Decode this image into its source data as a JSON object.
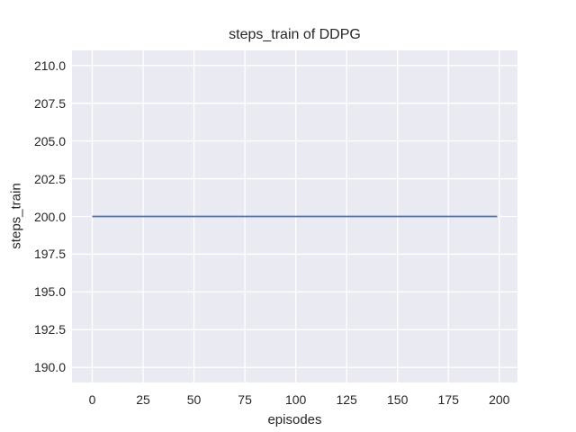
{
  "chart_data": {
    "type": "line",
    "title": "steps_train of DDPG",
    "xlabel": "episodes",
    "ylabel": "steps_train",
    "xlim": [
      -9.95,
      208.95
    ],
    "ylim": [
      189,
      211
    ],
    "x_ticks": [
      {
        "value": 0,
        "label": "0"
      },
      {
        "value": 25,
        "label": "25"
      },
      {
        "value": 50,
        "label": "50"
      },
      {
        "value": 75,
        "label": "75"
      },
      {
        "value": 100,
        "label": "100"
      },
      {
        "value": 125,
        "label": "125"
      },
      {
        "value": 150,
        "label": "150"
      },
      {
        "value": 175,
        "label": "175"
      },
      {
        "value": 200,
        "label": "200"
      }
    ],
    "y_ticks": [
      {
        "value": 190.0,
        "label": "190.0"
      },
      {
        "value": 192.5,
        "label": "192.5"
      },
      {
        "value": 195.0,
        "label": "195.0"
      },
      {
        "value": 197.5,
        "label": "197.5"
      },
      {
        "value": 200.0,
        "label": "200.0"
      },
      {
        "value": 202.5,
        "label": "202.5"
      },
      {
        "value": 205.0,
        "label": "205.0"
      },
      {
        "value": 207.5,
        "label": "207.5"
      },
      {
        "value": 210.0,
        "label": "210.0"
      }
    ],
    "grid": true,
    "legend": false,
    "colors": {
      "plot_background": "#EAEAF2",
      "grid": "#FFFFFF",
      "text": "#262626",
      "line": "#4C72B0",
      "figure_background": "#FFFFFF"
    },
    "series": [
      {
        "name": "steps_train",
        "color": "#4C72B0",
        "points": [
          [
            0,
            200.0
          ],
          [
            199,
            200.0
          ]
        ]
      }
    ]
  }
}
